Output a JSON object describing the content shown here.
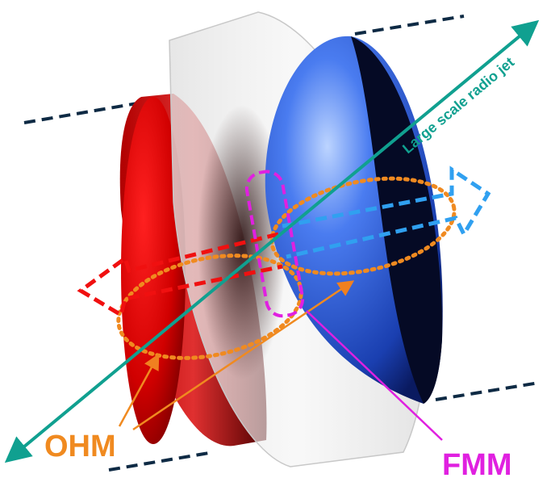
{
  "labels": {
    "jet": "Large scale radio jet",
    "ohm": "OHM",
    "fmm": "FMM"
  }
}
